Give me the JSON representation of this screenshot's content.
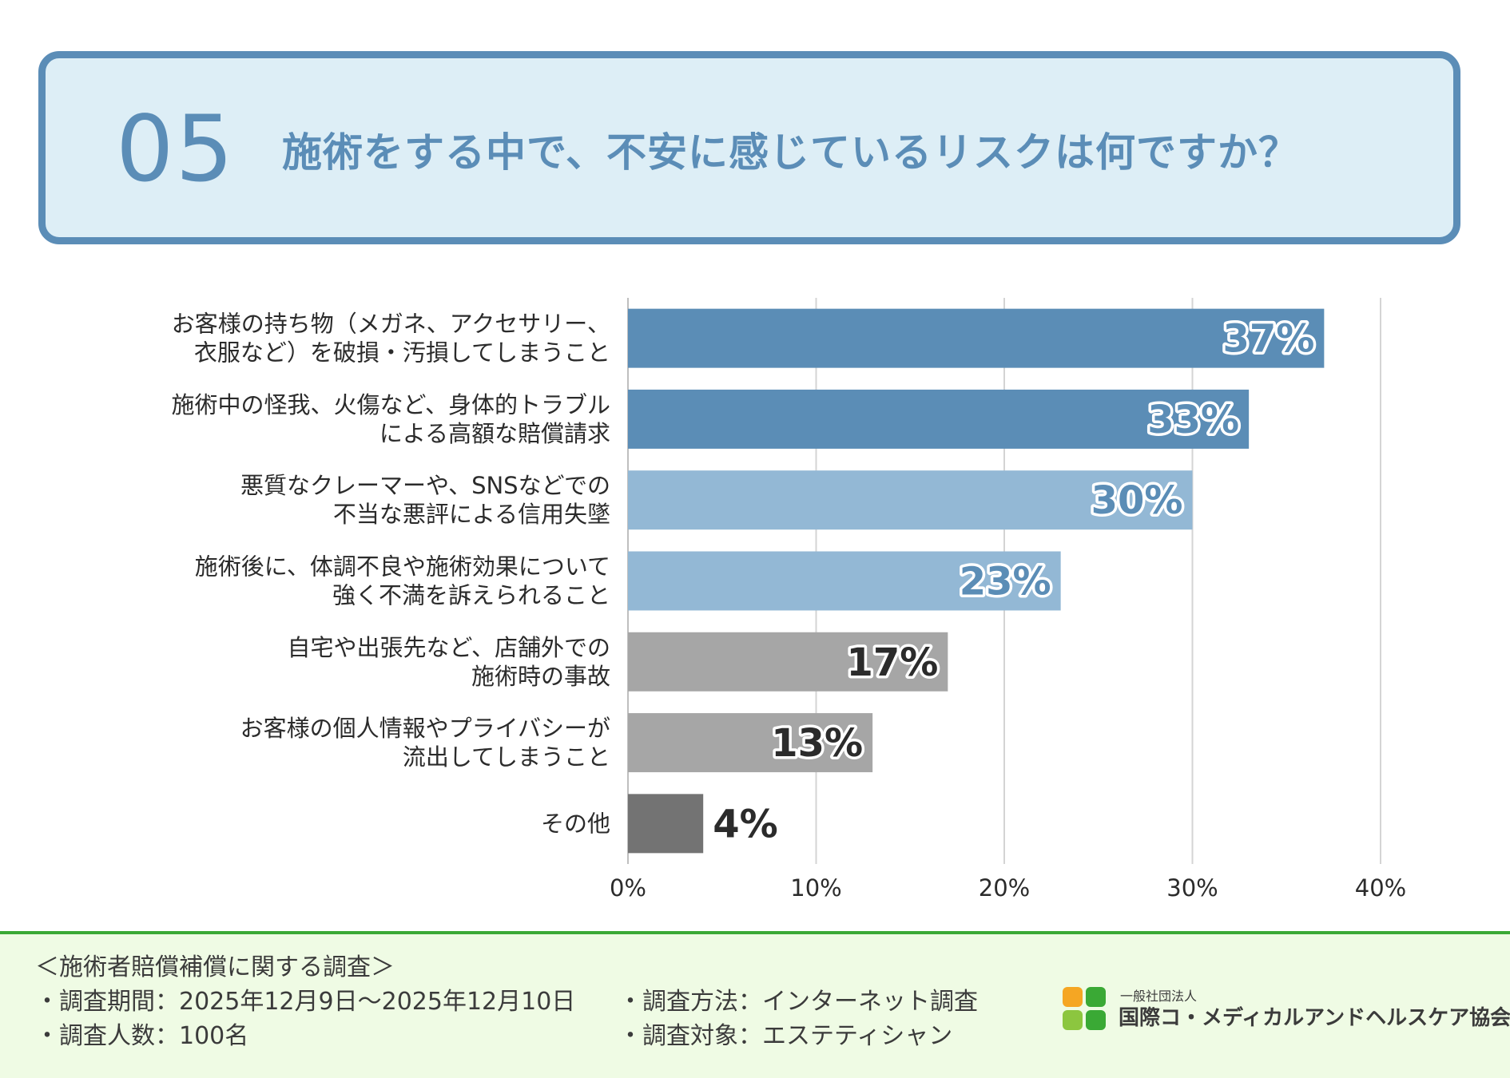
{
  "header": {
    "number": "05",
    "question": "施術をする中で、不安に感じているリスクは何ですか？"
  },
  "chart_data": {
    "type": "bar",
    "orientation": "horizontal",
    "categories": [
      [
        "お客様の持ち物（メガネ、アクセサリー、",
        "衣服など）を破損・汚損してしまうこと"
      ],
      [
        "施術中の怪我、火傷など、身体的トラブル",
        "による高額な賠償請求"
      ],
      [
        "悪質なクレーマーや、SNSなどでの",
        "不当な悪評による信用失墜"
      ],
      [
        "施術後に、体調不良や施術効果について",
        "強く不満を訴えられること"
      ],
      [
        "自宅や出張先など、店舗外での",
        "施術時の事故"
      ],
      [
        "お客様の個人情報やプライバシーが",
        "流出してしまうこと"
      ],
      [
        "その他"
      ]
    ],
    "values": [
      37,
      33,
      30,
      23,
      17,
      13,
      4
    ],
    "value_labels": [
      "37%",
      "33%",
      "30%",
      "23%",
      "17%",
      "13%",
      "4%"
    ],
    "bar_colors": [
      "#5b8db6",
      "#5b8db6",
      "#93b8d5",
      "#93b8d5",
      "#a6a6a6",
      "#a6a6a6",
      "#737373"
    ],
    "label_colors": [
      "#5b8db6",
      "#5b8db6",
      "#5b8db6",
      "#5b8db6",
      "#2b2b2b",
      "#2b2b2b",
      "#2b2b2b"
    ],
    "xlim": [
      0,
      40
    ],
    "xticks": [
      0,
      10,
      20,
      30,
      40
    ],
    "xtick_labels": [
      "0%",
      "10%",
      "20%",
      "30%",
      "40%"
    ],
    "grid": true,
    "xlabel": "",
    "ylabel": ""
  },
  "footer": {
    "survey_title": "＜施術者賠償補償に関する調査＞",
    "period": "・調査期間：2025年12月9日〜2025年12月10日",
    "count": "・調査人数：100名",
    "method": "・調査方法：インターネット調査",
    "target": "・調査対象：エステティシャン",
    "org_sub": "一般社団法人",
    "org_name": "国際コ・メディカルアンドヘルスケア協会",
    "logo_colors": [
      "#f5a623",
      "#3aa935",
      "#8cc63f",
      "#3aa935"
    ]
  }
}
